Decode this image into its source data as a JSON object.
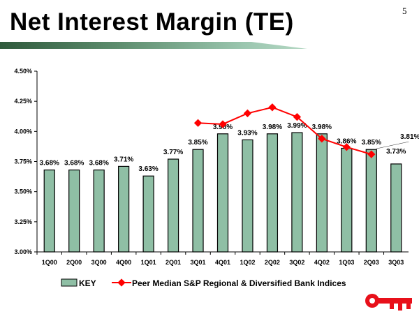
{
  "page_number": "5",
  "title": "Net Interest Margin (TE)",
  "colors": {
    "bar": "#8fbfa5",
    "peer_line": "#ff0000",
    "logo": "#e8101a"
  },
  "logo_icon": "key-icon",
  "chart_data": {
    "type": "bar",
    "categories": [
      "1Q00",
      "2Q00",
      "3Q00",
      "4Q00",
      "1Q01",
      "2Q01",
      "3Q01",
      "4Q01",
      "1Q02",
      "2Q02",
      "3Q02",
      "4Q02",
      "1Q03",
      "2Q03",
      "3Q03"
    ],
    "ylim": [
      3.0,
      4.5
    ],
    "yticks": [
      "3.00%",
      "3.25%",
      "3.50%",
      "3.75%",
      "4.00%",
      "4.25%",
      "4.50%"
    ],
    "yticks_values": [
      3.0,
      3.25,
      3.5,
      3.75,
      4.0,
      4.25,
      4.5
    ],
    "grid": false,
    "legend_position": "bottom",
    "series": [
      {
        "name": "KEY",
        "type": "bar",
        "values": [
          3.68,
          3.68,
          3.68,
          3.71,
          3.63,
          3.77,
          3.85,
          3.98,
          3.93,
          3.98,
          3.99,
          3.98,
          3.86,
          3.85,
          3.73
        ],
        "labels": [
          "3.68%",
          "3.68%",
          "3.68%",
          "3.71%",
          "3.63%",
          "3.77%",
          "3.85%",
          "3.98%",
          "3.93%",
          "3.98%",
          "3.99%",
          "3.98%",
          "3.86%",
          "3.85%",
          "3.73%"
        ]
      },
      {
        "name": "Peer Median S&P Regional & Diversified Bank Indices",
        "type": "line",
        "values": [
          null,
          null,
          null,
          null,
          null,
          null,
          4.07,
          4.06,
          4.15,
          4.2,
          4.12,
          3.94,
          3.87,
          3.81,
          null
        ],
        "labels": [
          "",
          "",
          "",
          "",
          "",
          "",
          "",
          "",
          "",
          "",
          "",
          "",
          "",
          "3.81%",
          ""
        ]
      }
    ]
  }
}
